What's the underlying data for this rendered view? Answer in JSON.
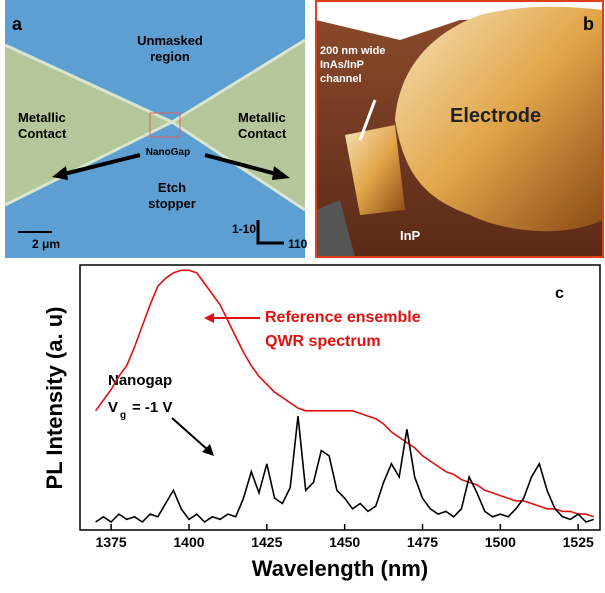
{
  "panel_a": {
    "label": "a",
    "unmasked": [
      "Unmasked",
      "region"
    ],
    "contact_left": [
      "Metallic",
      "Contact"
    ],
    "contact_right": [
      "Metallic",
      "Contact"
    ],
    "nanogap": "NanoGap",
    "etch": [
      "Etch",
      "stopper"
    ],
    "scale": "2 μm",
    "dir_up": "1-10",
    "dir_right": "110"
  },
  "panel_b": {
    "label": "b",
    "channel": [
      "200 nm wide",
      "InAs/InP",
      "channel"
    ],
    "electrode": "Electrode",
    "substrate": "InP"
  },
  "chart_data": {
    "type": "line",
    "panel_label": "c",
    "x_label": "Wavelength (nm)",
    "y_label": "PL Intensity (a. u)",
    "annotation_red": [
      "Reference ensemble",
      "QWR spectrum"
    ],
    "annotation_black": [
      "Nanogap",
      "V",
      "g",
      "= -1 V"
    ],
    "x": [
      1370,
      1372.5,
      1375,
      1377.5,
      1380,
      1382.5,
      1385,
      1387.5,
      1390,
      1392.5,
      1395,
      1397.5,
      1400,
      1402.5,
      1405,
      1407.5,
      1410,
      1412.5,
      1415,
      1417.5,
      1420,
      1422.5,
      1425,
      1427.5,
      1430,
      1432.5,
      1435,
      1437.5,
      1440,
      1442.5,
      1445,
      1447.5,
      1450,
      1452.5,
      1455,
      1457.5,
      1460,
      1462.5,
      1465,
      1467.5,
      1470,
      1472.5,
      1475,
      1477.5,
      1480,
      1482.5,
      1485,
      1487.5,
      1490,
      1492.5,
      1495,
      1497.5,
      1500,
      1502.5,
      1505,
      1507.5,
      1510,
      1512.5,
      1515,
      1517.5,
      1520,
      1522.5,
      1525,
      1527.5,
      1530
    ],
    "series": [
      {
        "color": "#e01010",
        "values": [
          0.45,
          0.49,
          0.53,
          0.58,
          0.62,
          0.69,
          0.77,
          0.85,
          0.92,
          0.95,
          0.97,
          0.98,
          0.98,
          0.97,
          0.93,
          0.89,
          0.85,
          0.79,
          0.73,
          0.67,
          0.62,
          0.58,
          0.55,
          0.52,
          0.5,
          0.48,
          0.46,
          0.45,
          0.45,
          0.45,
          0.45,
          0.45,
          0.45,
          0.45,
          0.44,
          0.43,
          0.42,
          0.4,
          0.37,
          0.35,
          0.33,
          0.31,
          0.28,
          0.26,
          0.24,
          0.22,
          0.21,
          0.19,
          0.18,
          0.17,
          0.15,
          0.14,
          0.13,
          0.12,
          0.11,
          0.11,
          0.1,
          0.09,
          0.08,
          0.08,
          0.07,
          0.07,
          0.06,
          0.06,
          0.05
        ]
      },
      {
        "color": "#000000",
        "values": [
          0.03,
          0.05,
          0.03,
          0.06,
          0.04,
          0.05,
          0.03,
          0.06,
          0.05,
          0.1,
          0.15,
          0.08,
          0.04,
          0.06,
          0.03,
          0.05,
          0.04,
          0.06,
          0.05,
          0.12,
          0.22,
          0.14,
          0.25,
          0.12,
          0.1,
          0.16,
          0.43,
          0.15,
          0.18,
          0.3,
          0.28,
          0.15,
          0.12,
          0.08,
          0.1,
          0.07,
          0.09,
          0.18,
          0.25,
          0.2,
          0.38,
          0.2,
          0.12,
          0.08,
          0.06,
          0.07,
          0.05,
          0.08,
          0.2,
          0.14,
          0.07,
          0.05,
          0.06,
          0.05,
          0.08,
          0.12,
          0.2,
          0.25,
          0.15,
          0.08,
          0.05,
          0.04,
          0.06,
          0.03,
          0.04
        ]
      }
    ],
    "xlim": [
      1365,
      1532
    ],
    "ylim": [
      0,
      1
    ],
    "xticks": [
      1375,
      1400,
      1425,
      1450,
      1475,
      1500,
      1525
    ]
  }
}
